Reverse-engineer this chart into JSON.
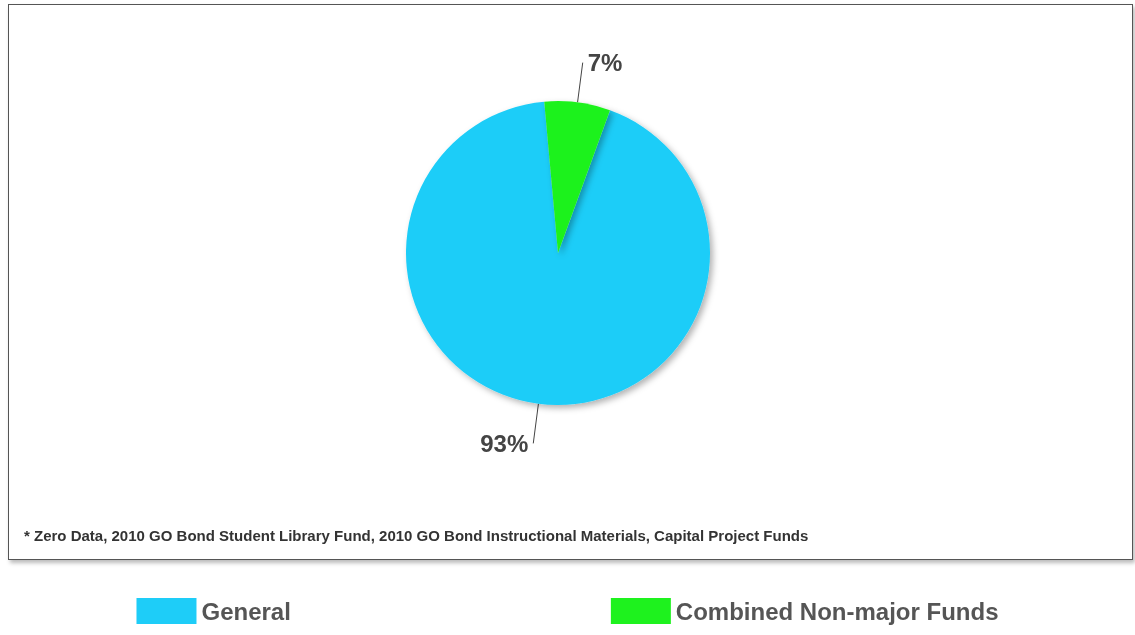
{
  "chart_data": {
    "type": "pie",
    "categories": [
      "General",
      "Combined Non-major Funds"
    ],
    "values": [
      93,
      7
    ],
    "colors": [
      "#1ecdf8",
      "#1ef21e"
    ],
    "value_labels": [
      "93%",
      "7%"
    ],
    "legend": "bottom",
    "annotations": [
      "* Zero Data, 2010 GO Bond Student Library Fund, 2010 GO Bond Instructional Materials, Capital Project Funds"
    ]
  }
}
